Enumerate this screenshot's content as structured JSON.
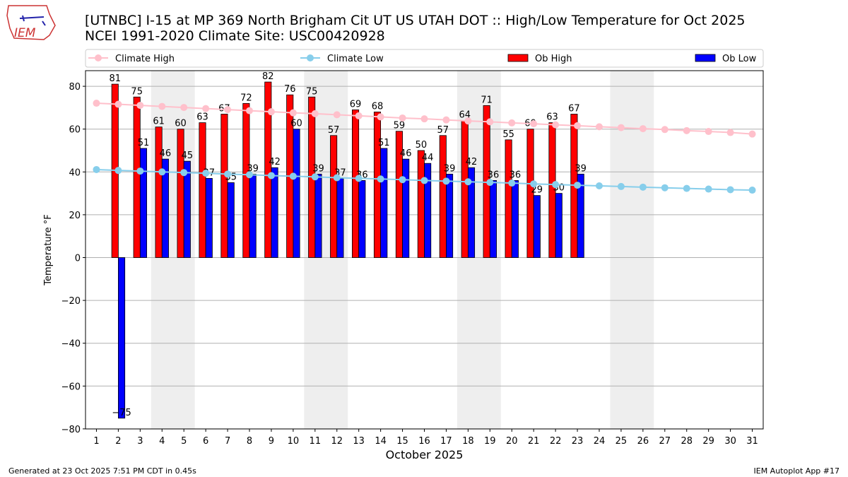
{
  "header": {
    "line1": "[UTNBC] I-15 at MP 369 North Brigham Cit UT US UTAH DOT :: High/Low Temperature for Oct 2025",
    "line2": "NCEI 1991-2020 Climate Site: USC00420928",
    "logo_text": "IEM"
  },
  "footer": {
    "left": "Generated at 23 Oct 2025 7:51 PM CDT in 0.45s",
    "right": "IEM Autoplot App #17"
  },
  "chart_data": {
    "type": "bar",
    "title": "[UTNBC] I-15 at MP 369 North Brigham Cit UT US UTAH DOT :: High/Low Temperature for Oct 2025",
    "xlabel": "October 2025",
    "ylabel": "Temperature °F",
    "ylim": [
      -80,
      87
    ],
    "xlim": [
      0.5,
      31.5
    ],
    "grid": true,
    "legend_position": "top (above plot)",
    "yticks": [
      -80,
      -60,
      -40,
      -20,
      0,
      20,
      40,
      60,
      80
    ],
    "x": [
      1,
      2,
      3,
      4,
      5,
      6,
      7,
      8,
      9,
      10,
      11,
      12,
      13,
      14,
      15,
      16,
      17,
      18,
      19,
      20,
      21,
      22,
      23,
      24,
      25,
      26,
      27,
      28,
      29,
      30,
      31
    ],
    "weekend_shading": [
      [
        4,
        5
      ],
      [
        11,
        12
      ],
      [
        18,
        19
      ],
      [
        25,
        26
      ]
    ],
    "series": [
      {
        "name": "Climate High",
        "type": "line",
        "color": "#ffc0cb",
        "values": [
          72.1,
          71.6,
          71.1,
          70.6,
          70.1,
          69.6,
          69.1,
          68.6,
          68.1,
          67.6,
          67.2,
          66.7,
          66.2,
          65.7,
          65.2,
          64.8,
          64.3,
          63.8,
          63.4,
          62.9,
          62.5,
          62.0,
          61.6,
          61.1,
          60.7,
          60.2,
          59.8,
          59.3,
          58.9,
          58.4,
          57.7
        ]
      },
      {
        "name": "Climate Low",
        "type": "line",
        "color": "#87ceeb",
        "values": [
          41.1,
          40.7,
          40.4,
          40.0,
          39.7,
          39.4,
          39.0,
          38.7,
          38.3,
          38.0,
          37.7,
          37.3,
          37.0,
          36.7,
          36.4,
          36.0,
          35.7,
          35.4,
          35.1,
          34.8,
          34.4,
          34.1,
          33.8,
          33.5,
          33.2,
          32.9,
          32.6,
          32.3,
          32.0,
          31.7,
          31.5
        ]
      },
      {
        "name": "Ob High",
        "type": "bar",
        "color": "#ff0000",
        "values": [
          null,
          81,
          75,
          61,
          60,
          63,
          67,
          72,
          82,
          76,
          75,
          57,
          69,
          68,
          59,
          50,
          57,
          64,
          71,
          55,
          60,
          63,
          67,
          null,
          null,
          null,
          null,
          null,
          null,
          null,
          null
        ]
      },
      {
        "name": "Ob Low",
        "type": "bar",
        "color": "#0000ff",
        "values": [
          null,
          -75,
          51,
          46,
          45,
          37,
          35,
          39,
          42,
          60,
          39,
          37,
          36,
          51,
          46,
          44,
          39,
          42,
          36,
          36,
          29,
          30,
          39,
          null,
          null,
          null,
          null,
          null,
          null,
          null,
          null
        ]
      }
    ]
  }
}
